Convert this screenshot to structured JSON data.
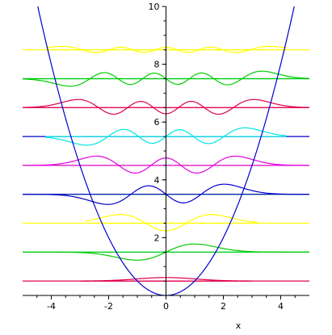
{
  "chart_data": {
    "type": "line",
    "title": "",
    "xlabel": "x",
    "ylabel": "",
    "xlim": [
      -5,
      5
    ],
    "ylim": [
      0,
      10
    ],
    "x_ticks": [
      -4,
      -2,
      0,
      2,
      4
    ],
    "y_ticks": [
      2,
      4,
      6,
      8,
      10
    ],
    "x_tick_labels": [
      "-4",
      "-2",
      "0",
      "2",
      "4"
    ],
    "y_tick_labels": [
      "2",
      "4",
      "6",
      "8",
      "10"
    ],
    "grid": false,
    "legend": false,
    "potential": {
      "formula": "x^2/2",
      "color": "#0000cc"
    },
    "energy_levels": [
      {
        "n": 0,
        "E": 0.5,
        "color": "#e0004e"
      },
      {
        "n": 1,
        "E": 1.5,
        "color": "#00e5e5"
      },
      {
        "n": 2,
        "E": 2.5,
        "color": "#ffff00"
      },
      {
        "n": 3,
        "E": 3.5,
        "color": "#00cc00"
      },
      {
        "n": 4,
        "E": 4.5,
        "color": "#ffff00"
      },
      {
        "n": 5,
        "E": 5.5,
        "color": "#0000cc"
      },
      {
        "n": 6,
        "E": 6.5,
        "color": "#e0004e"
      },
      {
        "n": 7,
        "E": 7.5,
        "color": "#00e5e5"
      },
      {
        "n": 8,
        "E": 8.5,
        "color": "#ffff00"
      }
    ],
    "wavefunctions": [
      {
        "n": 0,
        "color": "#e0004e",
        "x_range": [
          -3,
          3
        ],
        "scale": 0.12
      },
      {
        "n": 1,
        "color": "#00cc00",
        "x_range": [
          -5,
          5
        ],
        "scale": 0.28
      },
      {
        "n": 2,
        "color": "#ffff00",
        "x_range": [
          -2.8,
          3.2
        ],
        "scale": 0.3
      },
      {
        "n": 3,
        "color": "#0000cc",
        "x_range": [
          -5,
          5
        ],
        "scale": 0.35
      },
      {
        "n": 4,
        "color": "#e000e0",
        "x_range": [
          -5,
          5
        ],
        "scale": 0.32
      },
      {
        "n": 5,
        "color": "#00e5e5",
        "x_range": [
          -4.2,
          4.2
        ],
        "scale": 0.3
      },
      {
        "n": 6,
        "color": "#e0004e",
        "x_range": [
          -5,
          5
        ],
        "scale": 0.28
      },
      {
        "n": 7,
        "color": "#00cc00",
        "x_range": [
          -5,
          5
        ],
        "scale": 0.26
      },
      {
        "n": 8,
        "color": "#ffff00",
        "x_range": [
          -4.2,
          4.2
        ],
        "scale": 0.12
      }
    ]
  }
}
